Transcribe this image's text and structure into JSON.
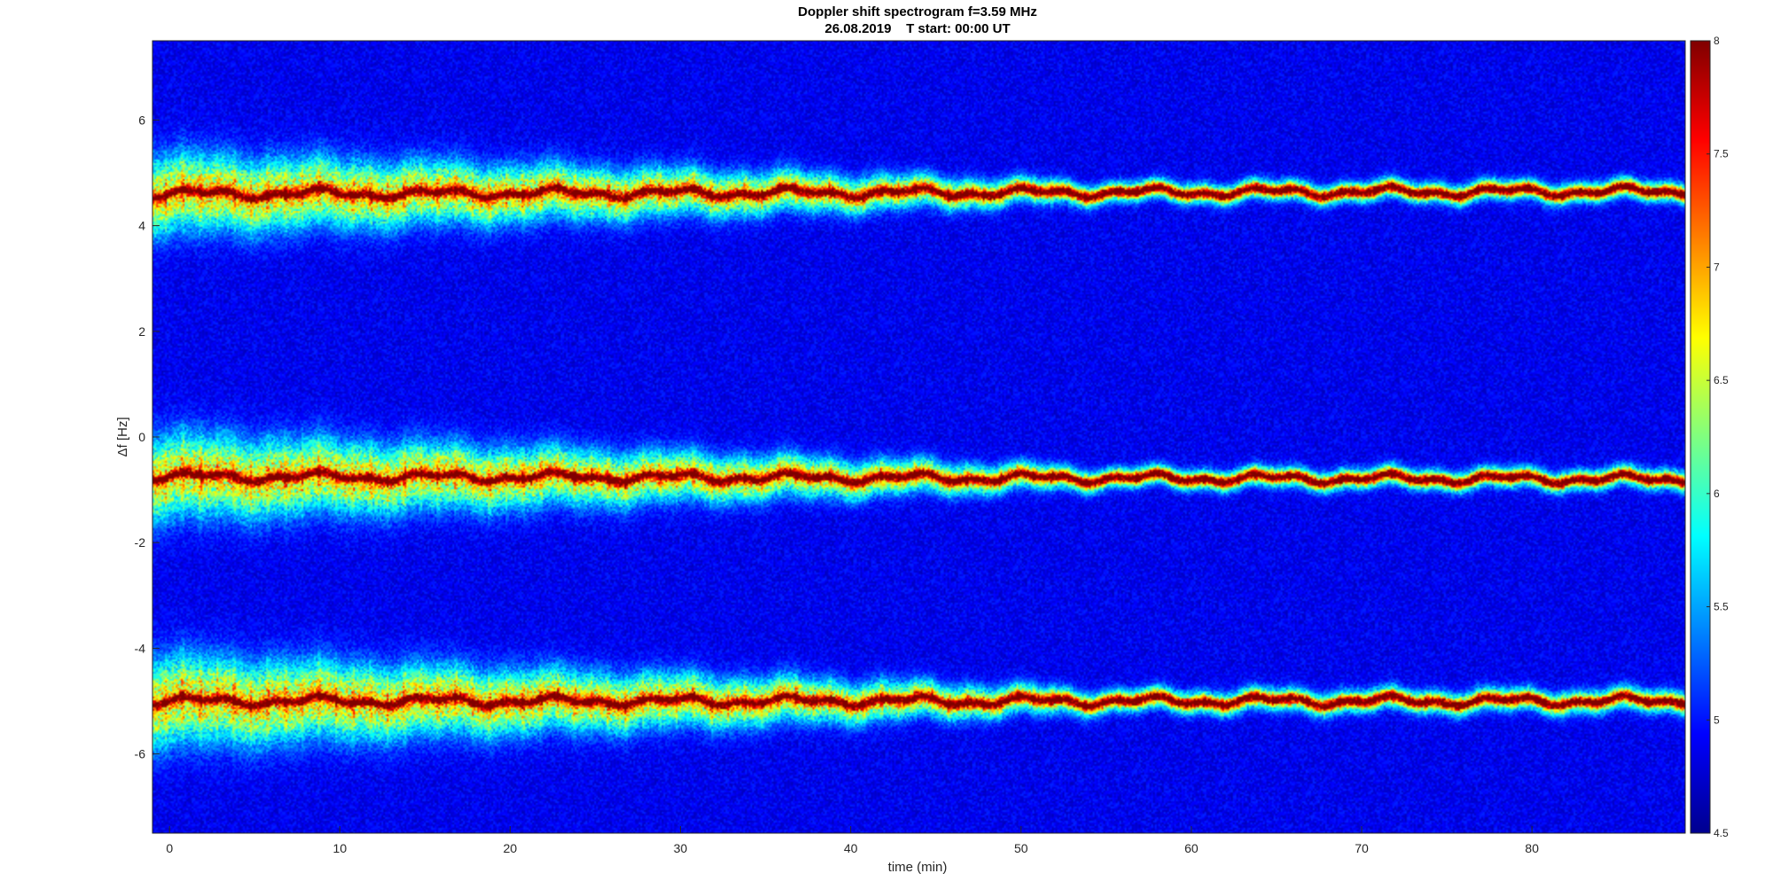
{
  "chart_data": {
    "type": "heatmap",
    "title": "Doppler shift spectrogram f=3.59 MHz",
    "subtitle": "26.08.2019    T start: 00:00 UT",
    "xlabel": "time (min)",
    "ylabel": "Δf [Hz]",
    "xlim": [
      -1,
      89
    ],
    "ylim": [
      -7.5,
      7.5
    ],
    "x_ticks": [
      0,
      10,
      20,
      30,
      40,
      50,
      60,
      70,
      80
    ],
    "y_ticks": [
      6,
      4,
      2,
      0,
      -2,
      -4,
      -6
    ],
    "colorbar": {
      "range": [
        4.5,
        8
      ],
      "ticks": [
        8,
        7.5,
        7,
        6.5,
        6,
        5.5,
        5,
        4.5
      ],
      "colormap": "jet"
    },
    "traces": [
      {
        "center_start": 4.6,
        "center_end": 4.65,
        "spread_start": 0.7,
        "spread_end": 0.18
      },
      {
        "center_start": -0.75,
        "center_end": -0.8,
        "spread_start": 0.75,
        "spread_end": 0.18
      },
      {
        "center_start": -5.0,
        "center_end": -5.0,
        "spread_start": 0.8,
        "spread_end": 0.2
      }
    ]
  }
}
